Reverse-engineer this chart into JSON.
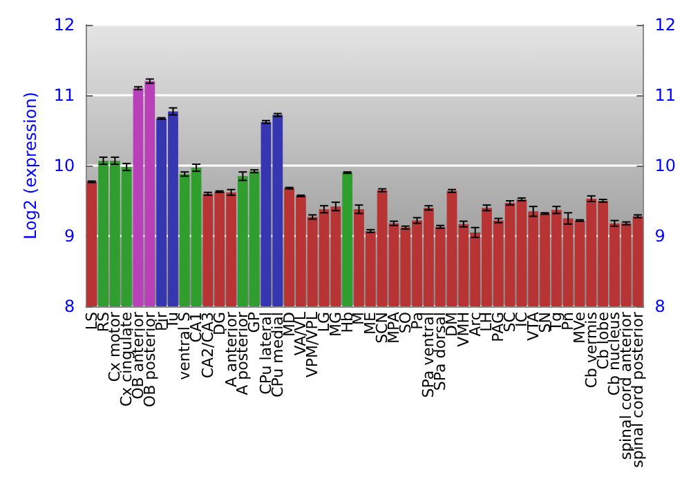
{
  "chart_data": {
    "type": "bar",
    "ylabel": "Log2 (expression)",
    "categories": [
      "LS",
      "RS",
      "Cx motor",
      "Cx cingulate",
      "OB anterior",
      "OB posterior",
      "Pir",
      "Tu",
      "ventral S",
      "CA1",
      "CA2/CA3",
      "DG",
      "A anterior",
      "A posterior",
      "GP",
      "CPu lateral",
      "CPu medial",
      "MD",
      "VA/VL",
      "VPM/VPL",
      "LG",
      "MG",
      "Hb",
      "M",
      "ME",
      "SCN",
      "MPA",
      "SO",
      "Pa",
      "SPa ventral",
      "SPa dorsal",
      "DM",
      "VMH",
      "Arc",
      "LH",
      "PAG",
      "SC",
      "IC",
      "VTA",
      "SN",
      "Tg",
      "Pn",
      "MVe",
      "Cb vermis",
      "Cb lobe",
      "Cb nucleus",
      "spinal cord anterior",
      "spinal cord posterior"
    ],
    "values": [
      9.77,
      10.07,
      10.07,
      9.98,
      11.1,
      11.2,
      10.67,
      10.77,
      9.88,
      9.97,
      9.6,
      9.63,
      9.62,
      9.85,
      9.92,
      10.62,
      10.72,
      9.68,
      9.57,
      9.27,
      9.38,
      9.42,
      9.9,
      9.38,
      9.07,
      9.65,
      9.18,
      9.12,
      9.22,
      9.4,
      9.13,
      9.64,
      9.17,
      9.05,
      9.4,
      9.22,
      9.47,
      9.52,
      9.35,
      9.32,
      9.37,
      9.25,
      9.22,
      9.53,
      9.5,
      9.18,
      9.18,
      9.28
    ],
    "errors": [
      0.01,
      0.05,
      0.05,
      0.05,
      0.02,
      0.03,
      0.01,
      0.05,
      0.03,
      0.05,
      0.02,
      0.01,
      0.04,
      0.06,
      0.02,
      0.02,
      0.02,
      0.01,
      0.01,
      0.03,
      0.05,
      0.06,
      0.01,
      0.06,
      0.02,
      0.02,
      0.03,
      0.02,
      0.04,
      0.03,
      0.02,
      0.02,
      0.04,
      0.07,
      0.04,
      0.03,
      0.03,
      0.02,
      0.07,
      0.01,
      0.05,
      0.08,
      0.01,
      0.04,
      0.02,
      0.04,
      0.02,
      0.02
    ],
    "colors": [
      "#b83434",
      "#2f9e2f",
      "#2f9e2f",
      "#2f9e2f",
      "#b840b8",
      "#b840b8",
      "#3636b0",
      "#3636b0",
      "#2f9e2f",
      "#2f9e2f",
      "#b83434",
      "#b83434",
      "#b83434",
      "#2f9e2f",
      "#2f9e2f",
      "#3636b0",
      "#3636b0",
      "#b83434",
      "#b83434",
      "#b83434",
      "#b83434",
      "#b83434",
      "#2f9e2f",
      "#b83434",
      "#b83434",
      "#b83434",
      "#b83434",
      "#b83434",
      "#b83434",
      "#b83434",
      "#b83434",
      "#b83434",
      "#b83434",
      "#b83434",
      "#b83434",
      "#b83434",
      "#b83434",
      "#b83434",
      "#b83434",
      "#b83434",
      "#b83434",
      "#b83434",
      "#b83434",
      "#b83434",
      "#b83434",
      "#b83434",
      "#b83434",
      "#b83434"
    ],
    "ylim": [
      8,
      12
    ],
    "yticks": [
      8,
      9,
      10,
      11,
      12
    ],
    "y2lim": [
      8,
      12
    ],
    "y2ticks": [
      8,
      9,
      10,
      11,
      12
    ],
    "grid": "y"
  }
}
